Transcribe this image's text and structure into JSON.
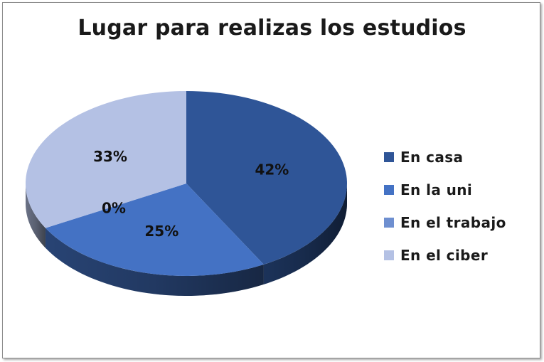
{
  "chart_data": {
    "type": "pie",
    "title": "Lugar para realizas los estudios",
    "legend_position": "right",
    "slices": [
      {
        "label": "En casa",
        "value": 42,
        "display": "42%",
        "color": "#2f5597"
      },
      {
        "label": "En la uni",
        "value": 25,
        "display": "25%",
        "color": "#4472c4"
      },
      {
        "label": "En el trabajo",
        "value": 0,
        "display": "0%",
        "color": "#6e8fd0"
      },
      {
        "label": "En el ciber",
        "value": 33,
        "display": "33%",
        "color": "#b4c1e4"
      }
    ]
  }
}
